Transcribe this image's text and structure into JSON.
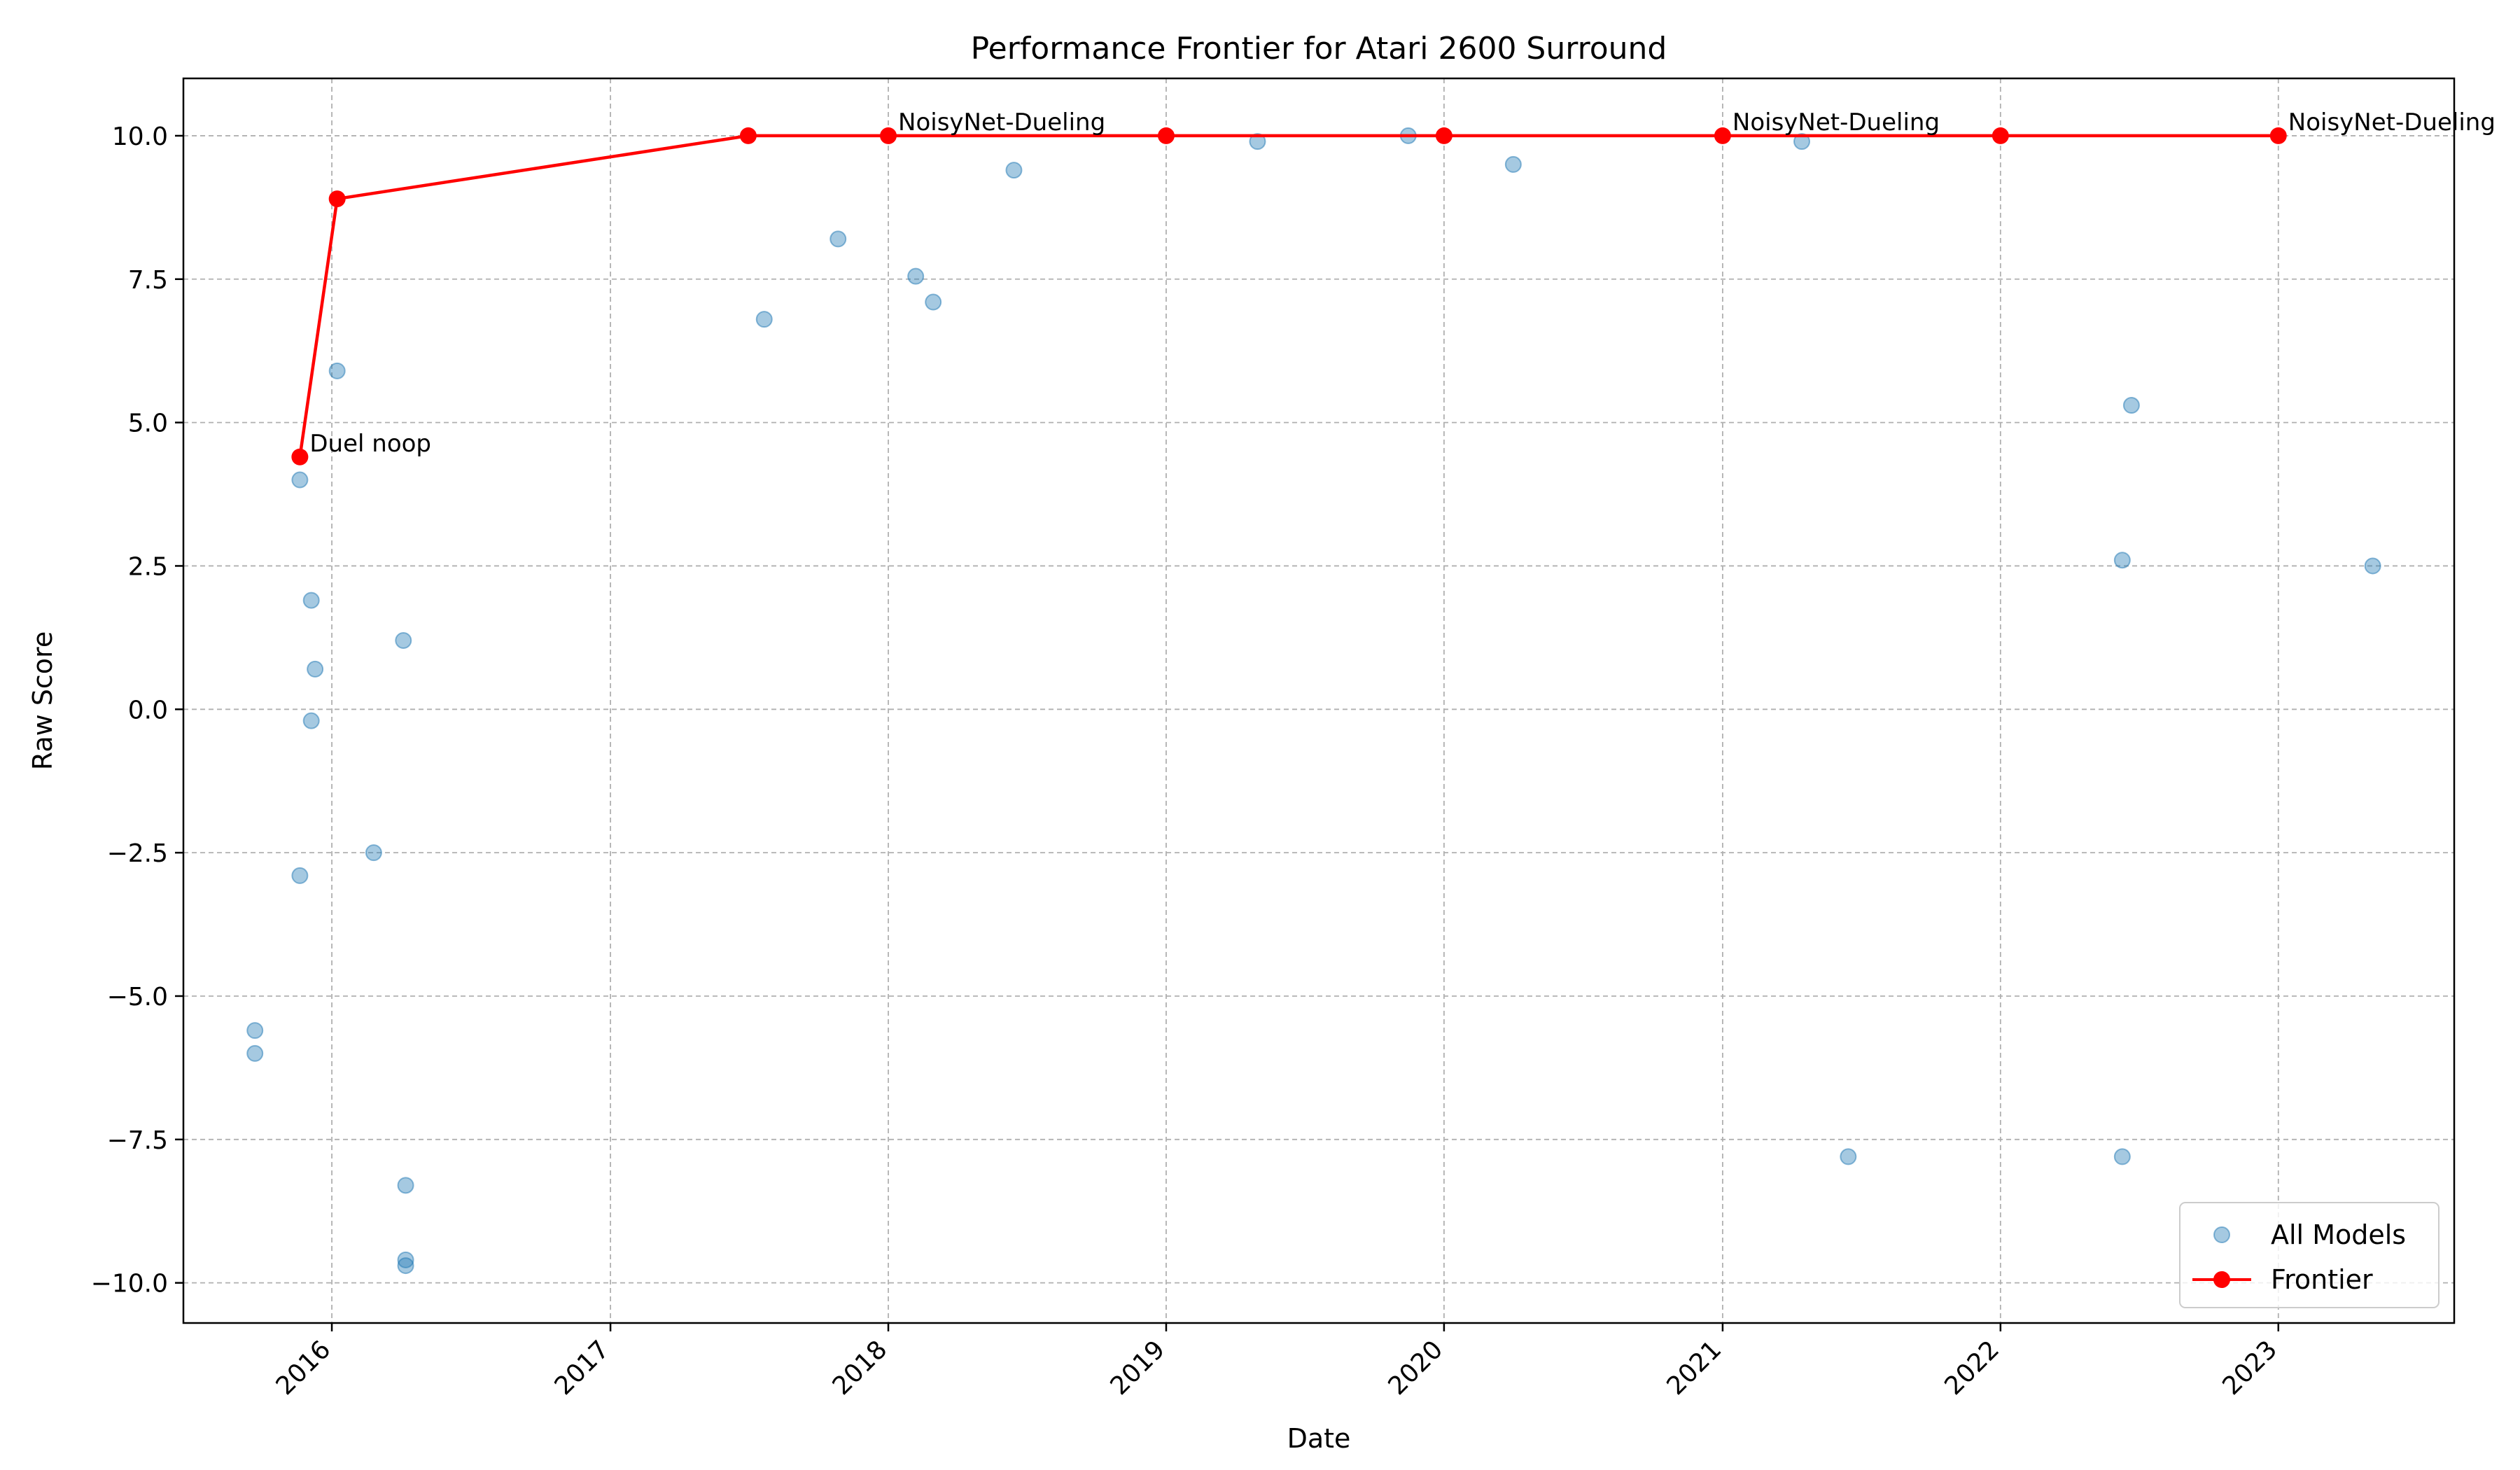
{
  "chart_data": {
    "type": "scatter",
    "title": "Performance Frontier for Atari 2600 Surround",
    "xlabel": "Date",
    "ylabel": "Raw Score",
    "xlim": [
      "2015-06-20",
      "2023-08-20"
    ],
    "ylim": [
      -10.7,
      11.0
    ],
    "x_ticks": [
      "2016-01-01",
      "2017-01-01",
      "2018-01-01",
      "2019-01-01",
      "2020-01-01",
      "2021-01-01",
      "2022-01-01",
      "2023-01-01"
    ],
    "x_tick_labels": [
      "2016",
      "2017",
      "2018",
      "2019",
      "2020",
      "2021",
      "2022",
      "2023"
    ],
    "y_ticks": [
      -10.0,
      -7.5,
      -5.0,
      -2.5,
      0.0,
      2.5,
      5.0,
      7.5,
      10.0
    ],
    "y_tick_labels": [
      "−10.0",
      "−7.5",
      "−5.0",
      "−2.5",
      "0.0",
      "2.5",
      "5.0",
      "7.5",
      "10.0"
    ],
    "grid": true,
    "legend_position": "bottom-right",
    "series": [
      {
        "name": "All Models",
        "kind": "scatter",
        "color": "#1f77b4",
        "points": [
          {
            "x": "2015-09-22",
            "y": -5.6
          },
          {
            "x": "2015-09-22",
            "y": -6.0
          },
          {
            "x": "2015-11-20",
            "y": 4.0
          },
          {
            "x": "2015-11-20",
            "y": -2.9
          },
          {
            "x": "2015-12-05",
            "y": 1.9
          },
          {
            "x": "2015-12-10",
            "y": 0.7
          },
          {
            "x": "2015-12-05",
            "y": -0.2
          },
          {
            "x": "2016-01-08",
            "y": 5.9
          },
          {
            "x": "2016-02-25",
            "y": -2.5
          },
          {
            "x": "2016-04-04",
            "y": 1.2
          },
          {
            "x": "2016-04-07",
            "y": -8.3
          },
          {
            "x": "2016-04-07",
            "y": -9.6
          },
          {
            "x": "2016-04-07",
            "y": -9.7
          },
          {
            "x": "2017-07-22",
            "y": 6.8
          },
          {
            "x": "2017-10-27",
            "y": 8.2
          },
          {
            "x": "2018-02-06",
            "y": 7.55
          },
          {
            "x": "2018-03-01",
            "y": 7.1
          },
          {
            "x": "2018-06-15",
            "y": 9.4
          },
          {
            "x": "2019-05-01",
            "y": 9.9
          },
          {
            "x": "2019-11-15",
            "y": 10.0
          },
          {
            "x": "2020-04-01",
            "y": 9.5
          },
          {
            "x": "2021-04-15",
            "y": 9.9
          },
          {
            "x": "2021-06-15",
            "y": -7.8
          },
          {
            "x": "2022-06-10",
            "y": 2.6
          },
          {
            "x": "2022-06-10",
            "y": -7.8
          },
          {
            "x": "2022-06-22",
            "y": 5.3
          },
          {
            "x": "2023-05-05",
            "y": 2.5
          }
        ]
      },
      {
        "name": "Frontier",
        "kind": "line",
        "color": "#ff0000",
        "points": [
          {
            "x": "2015-11-20",
            "y": 4.4
          },
          {
            "x": "2016-01-08",
            "y": 8.9
          },
          {
            "x": "2017-07-01",
            "y": 10.0
          },
          {
            "x": "2018-01-01",
            "y": 10.0
          },
          {
            "x": "2019-01-01",
            "y": 10.0
          },
          {
            "x": "2020-01-01",
            "y": 10.0
          },
          {
            "x": "2021-01-01",
            "y": 10.0
          },
          {
            "x": "2022-01-01",
            "y": 10.0
          },
          {
            "x": "2023-01-01",
            "y": 10.0
          }
        ]
      }
    ],
    "annotations": [
      {
        "text": "Duel noop",
        "x": "2015-11-20",
        "y": 4.4
      },
      {
        "text": "NoisyNet-Dueling",
        "x": "2018-01-01",
        "y": 10.0
      },
      {
        "text": "NoisyNet-Dueling",
        "x": "2021-01-01",
        "y": 10.0
      },
      {
        "text": "NoisyNet-Dueling",
        "x": "2023-01-01",
        "y": 10.0
      }
    ]
  }
}
